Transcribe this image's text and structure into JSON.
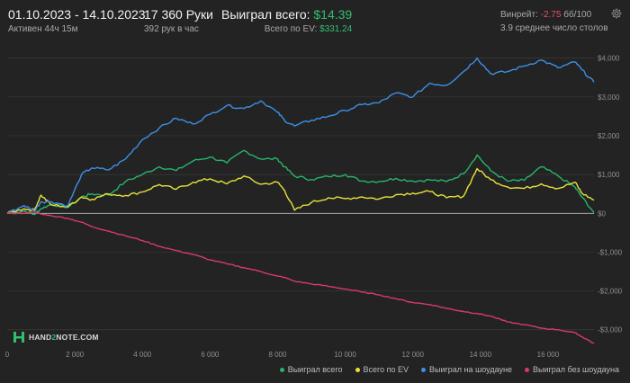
{
  "header": {
    "date_range": "01.10.2023 - 14.10.2023",
    "active_time": "Активен 44ч 15м",
    "hands": "17 360 Руки",
    "hands_per_hour": "392 рук в час",
    "won_total_label": "Выиграл всего:",
    "won_total_value": "$14.39",
    "ev_total_label": "Всего по EV:",
    "ev_total_value": "$331.24",
    "winrate_label": "Винрейт:",
    "winrate_value": "-2.75",
    "winrate_unit": "бб/100",
    "avg_tables": "3.9 среднее число столов"
  },
  "logo": {
    "text_a": "HAND",
    "text_b": "2",
    "text_c": "NOTE.COM"
  },
  "chart_data": {
    "type": "line",
    "x_ticks": [
      0,
      2000,
      4000,
      6000,
      8000,
      10000,
      12000,
      14000,
      16000
    ],
    "x_tick_labels": [
      "0",
      "2 000",
      "4 000",
      "6 000",
      "8 000",
      "10 000",
      "12 000",
      "14 000",
      "16 000"
    ],
    "xlim": [
      0,
      17360
    ],
    "y_ticks": [
      -3000,
      -2000,
      -1000,
      0,
      1000,
      2000,
      3000,
      4000
    ],
    "y_tick_labels": [
      "-$3,000",
      "-$2,000",
      "-$1,000",
      "$0",
      "$1,000",
      "$2,000",
      "$3,000",
      "$4,000"
    ],
    "ylim": [
      -3400,
      4200
    ],
    "grid": true,
    "legend_position": "bottom-right",
    "series": [
      {
        "name": "Выиграл всего",
        "color": "#26b56a",
        "x": [
          0,
          500,
          800,
          1000,
          1300,
          1800,
          2200,
          2500,
          3000,
          3500,
          4000,
          4500,
          5000,
          5500,
          6000,
          6500,
          7000,
          7500,
          8000,
          8200,
          8500,
          9000,
          9500,
          10000,
          10500,
          11000,
          11500,
          12000,
          12500,
          13000,
          13500,
          13900,
          14300,
          14800,
          15300,
          15800,
          16300,
          16800,
          17000,
          17360
        ],
        "values": [
          0,
          60,
          -30,
          120,
          230,
          160,
          420,
          500,
          470,
          820,
          1000,
          1200,
          1100,
          1350,
          1450,
          1300,
          1620,
          1400,
          1400,
          1200,
          960,
          870,
          950,
          1000,
          830,
          820,
          900,
          830,
          860,
          820,
          1020,
          1500,
          1100,
          830,
          850,
          1200,
          960,
          670,
          420,
          20
        ]
      },
      {
        "name": "Всего по EV",
        "color": "#e8e23a",
        "x": [
          0,
          500,
          800,
          1000,
          1300,
          1800,
          2200,
          2500,
          3000,
          3500,
          4000,
          4500,
          5000,
          5500,
          6000,
          6500,
          7000,
          7500,
          8000,
          8200,
          8500,
          9000,
          9500,
          10000,
          10500,
          11000,
          11500,
          12000,
          12500,
          13000,
          13500,
          13900,
          14300,
          14800,
          15300,
          15800,
          16300,
          16800,
          17000,
          17360
        ],
        "values": [
          0,
          120,
          80,
          470,
          220,
          170,
          420,
          360,
          500,
          460,
          550,
          740,
          620,
          800,
          890,
          760,
          960,
          750,
          800,
          600,
          80,
          280,
          400,
          380,
          420,
          370,
          480,
          520,
          560,
          400,
          440,
          1150,
          870,
          680,
          640,
          760,
          640,
          800,
          520,
          340
        ]
      },
      {
        "name": "Выиграл на шоудауне",
        "color": "#3d8fe6",
        "x": [
          0,
          500,
          800,
          1000,
          1300,
          1800,
          2200,
          2500,
          3000,
          3500,
          4000,
          4500,
          5000,
          5500,
          6000,
          6500,
          7000,
          7500,
          8000,
          8200,
          8500,
          9000,
          9500,
          10000,
          10500,
          11000,
          11500,
          12000,
          12500,
          13000,
          13500,
          13900,
          14300,
          14800,
          15300,
          15800,
          16300,
          16800,
          17000,
          17360
        ],
        "values": [
          0,
          200,
          60,
          300,
          300,
          200,
          1000,
          1170,
          1120,
          1400,
          1900,
          2200,
          2450,
          2300,
          2550,
          2780,
          2700,
          2900,
          2600,
          2400,
          2250,
          2400,
          2500,
          2650,
          2800,
          2850,
          3100,
          3000,
          3350,
          3300,
          3650,
          4000,
          3600,
          3650,
          3800,
          3950,
          3750,
          3900,
          3700,
          3380
        ]
      },
      {
        "name": "Выиграл без шоудауна",
        "color": "#d83a6a",
        "x": [
          0,
          500,
          800,
          1000,
          1300,
          1800,
          2200,
          2500,
          3000,
          3500,
          4000,
          4500,
          5000,
          5500,
          6000,
          6500,
          7000,
          7500,
          8000,
          8200,
          8500,
          9000,
          9500,
          10000,
          10500,
          11000,
          11500,
          12000,
          12500,
          13000,
          13500,
          13900,
          14300,
          14800,
          15300,
          15800,
          16300,
          16800,
          17000,
          17360
        ],
        "values": [
          0,
          0,
          40,
          -20,
          -60,
          -130,
          -230,
          -340,
          -460,
          -580,
          -700,
          -850,
          -960,
          -1060,
          -1200,
          -1300,
          -1400,
          -1500,
          -1620,
          -1650,
          -1750,
          -1820,
          -1880,
          -1950,
          -2030,
          -2100,
          -2200,
          -2300,
          -2350,
          -2450,
          -2530,
          -2580,
          -2650,
          -2800,
          -2870,
          -2960,
          -3000,
          -3080,
          -3180,
          -3350
        ]
      }
    ]
  }
}
